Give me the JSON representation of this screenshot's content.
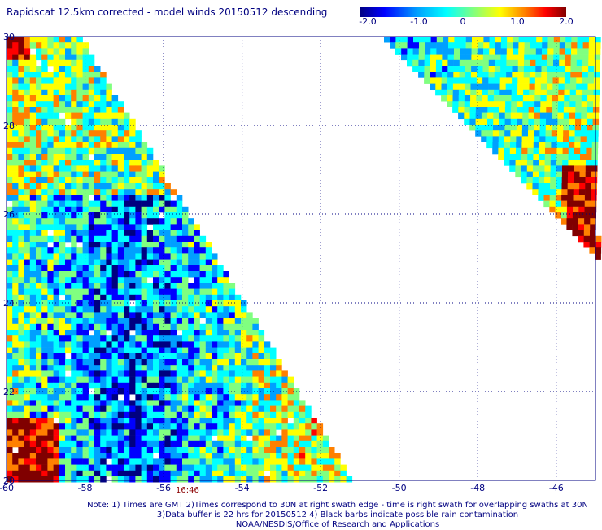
{
  "title": "Rapidscat 12.5km corrected - model winds 20150512 descending",
  "colorbar": {
    "labels": [
      "-2.0",
      "-1.0",
      "0",
      "1.0",
      "2.0"
    ],
    "values": [
      -2.0,
      -1.0,
      0,
      1.0,
      2.0
    ],
    "colors": [
      "#000080",
      "#0000ff",
      "#00a0ff",
      "#00ffff",
      "#80ff80",
      "#ffff00",
      "#ff8000",
      "#ff0000",
      "#800000"
    ]
  },
  "map": {
    "lon_range": [
      -60,
      -45
    ],
    "lat_range": [
      20,
      30
    ],
    "lon_ticks": [
      "-60",
      "-58",
      "-56",
      "-54",
      "-52",
      "-50",
      "-48",
      "-46"
    ],
    "lat_ticks": [
      "20",
      "22",
      "24",
      "26",
      "28",
      "30"
    ],
    "grid": "dotted"
  },
  "swath_time": "16:46",
  "notes": {
    "line1": "Note: 1) Times are GMT 2)Times correspond to 30N at right swath edge - time is right swath for overlapping swaths at 30N",
    "line2": "3)Data buffer is 22 hrs for 20150512 4) Black barbs indicate possible rain contamination",
    "line3": "NOAA/NESDIS/Office of Research and Applications"
  }
}
